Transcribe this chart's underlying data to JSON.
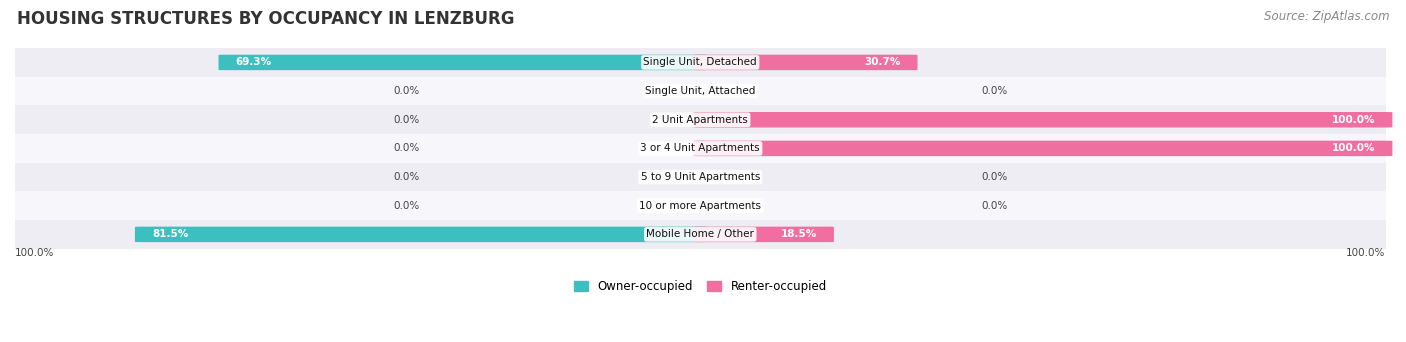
{
  "title": "HOUSING STRUCTURES BY OCCUPANCY IN LENZBURG",
  "source": "Source: ZipAtlas.com",
  "categories": [
    "Single Unit, Detached",
    "Single Unit, Attached",
    "2 Unit Apartments",
    "3 or 4 Unit Apartments",
    "5 to 9 Unit Apartments",
    "10 or more Apartments",
    "Mobile Home / Other"
  ],
  "owner_values": [
    69.3,
    0.0,
    0.0,
    0.0,
    0.0,
    0.0,
    81.5
  ],
  "renter_values": [
    30.7,
    0.0,
    100.0,
    100.0,
    0.0,
    0.0,
    18.5
  ],
  "owner_color": "#3BBFBF",
  "renter_color": "#F06FA0",
  "owner_label": "Owner-occupied",
  "renter_label": "Renter-occupied",
  "row_bg_colors": [
    "#EDEDF3",
    "#F7F7FB"
  ],
  "label_left_pct": "100.0%",
  "label_right_pct": "100.0%",
  "title_fontsize": 12,
  "source_fontsize": 8.5,
  "bar_height": 0.52
}
